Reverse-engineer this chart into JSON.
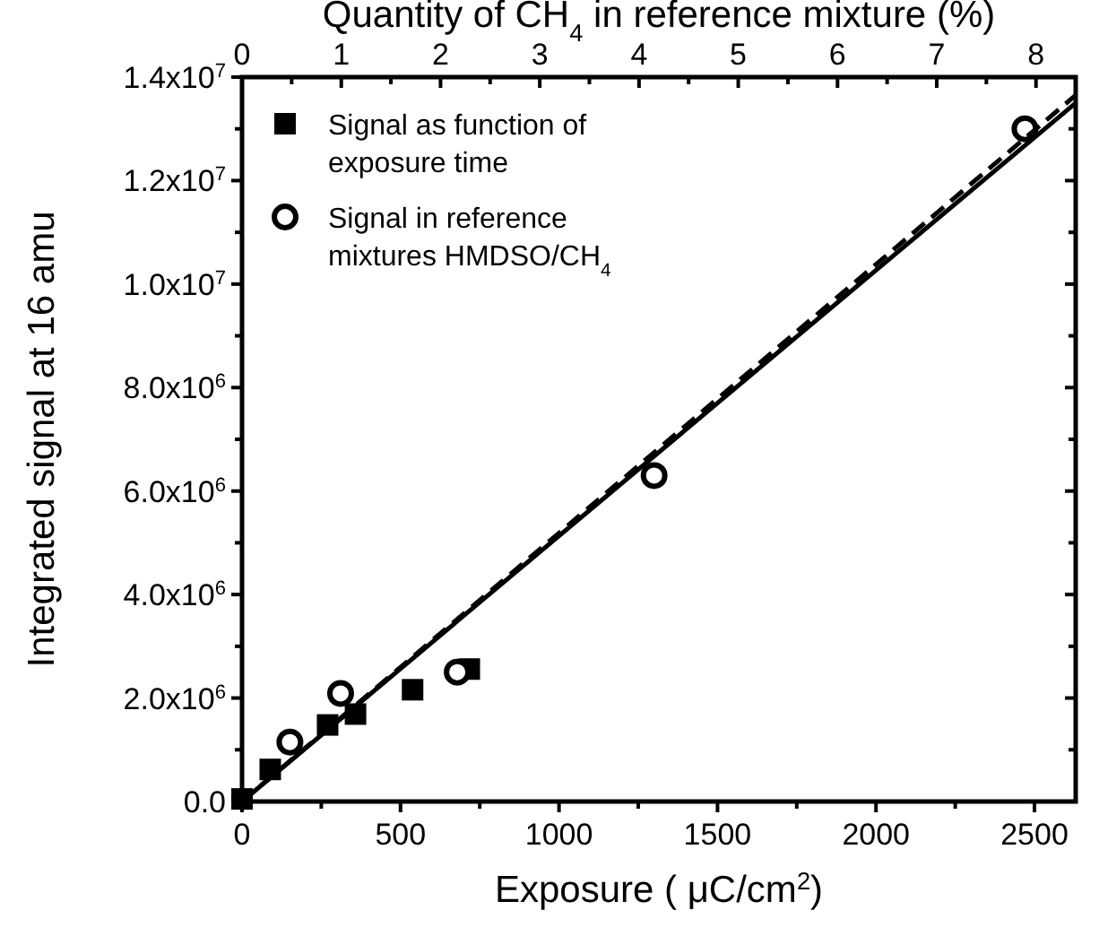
{
  "chart_data": {
    "type": "scatter",
    "xlabel": "Exposure ( μC/cm$^{2}$)",
    "ylabel": "Integrated signal at 16 amu",
    "x2label": "Quantity of CH$_{4}$ in reference mixture (%)",
    "xlim": [
      0,
      2630
    ],
    "xticks": [
      0,
      {
        "value": 250,
        "label": null
      },
      500,
      {
        "value": 750,
        "label": null
      },
      1000,
      {
        "value": 1250,
        "label": null
      },
      1500,
      {
        "value": 1750,
        "label": null
      },
      2000,
      {
        "value": 2250,
        "label": null
      },
      2500
    ],
    "x2lim": [
      0,
      8.4
    ],
    "x2ticks": [
      0,
      {
        "value": 0.5,
        "label": null
      },
      1,
      {
        "value": 1.5,
        "label": null
      },
      2,
      {
        "value": 2.5,
        "label": null
      },
      3,
      {
        "value": 3.5,
        "label": null
      },
      4,
      {
        "value": 4.5,
        "label": null
      },
      5,
      {
        "value": 5.5,
        "label": null
      },
      6,
      {
        "value": 6.5,
        "label": null
      },
      7,
      {
        "value": 7.5,
        "label": null
      },
      8
    ],
    "ylim": [
      0,
      14000000
    ],
    "yticks": [
      {
        "value": 0,
        "label": "0.0"
      },
      {
        "value": 1000000,
        "label": null
      },
      {
        "value": 2000000,
        "label": "2.0x10$^{6}$"
      },
      {
        "value": 3000000,
        "label": null
      },
      {
        "value": 4000000,
        "label": "4.0x10$^{6}$"
      },
      {
        "value": 5000000,
        "label": null
      },
      {
        "value": 6000000,
        "label": "6.0x10$^{6}$"
      },
      {
        "value": 7000000,
        "label": null
      },
      {
        "value": 8000000,
        "label": "8.0x10$^{6}$"
      },
      {
        "value": 9000000,
        "label": null
      },
      {
        "value": 10000000,
        "label": "1.0x10$^{7}$"
      },
      {
        "value": 11000000,
        "label": null
      },
      {
        "value": 12000000,
        "label": "1.2x10$^{7}$"
      },
      {
        "value": 13000000,
        "label": null
      },
      {
        "value": 14000000,
        "label": "1.4x10$^{7}$"
      }
    ],
    "legend": "top left",
    "grid": false,
    "series": [
      {
        "name": "Signal as function of exposure time",
        "color": "#000000",
        "marker": "square",
        "x": [
          0,
          89,
          270,
          358,
          538,
          717
        ],
        "values": [
          50000,
          620000,
          1480000,
          1690000,
          2160000,
          2560000
        ]
      },
      {
        "name": "Signal in reference mixtures HMDSO/CH$_{4}$",
        "color": "#000000",
        "marker": "circle",
        "x": [
          151,
          311,
          679,
          1300,
          2470
        ],
        "values": [
          1150000,
          2090000,
          2500000,
          6300000,
          13000000
        ]
      },
      {
        "color": "#000000",
        "type": "line",
        "line_style": "solid",
        "x": [
          0,
          2630
        ],
        "values": [
          0,
          13500000
        ]
      },
      {
        "color": "#000000",
        "type": "line",
        "line_style": "dashed",
        "x": [
          0,
          2630
        ],
        "values": [
          0,
          13650000
        ]
      }
    ]
  }
}
